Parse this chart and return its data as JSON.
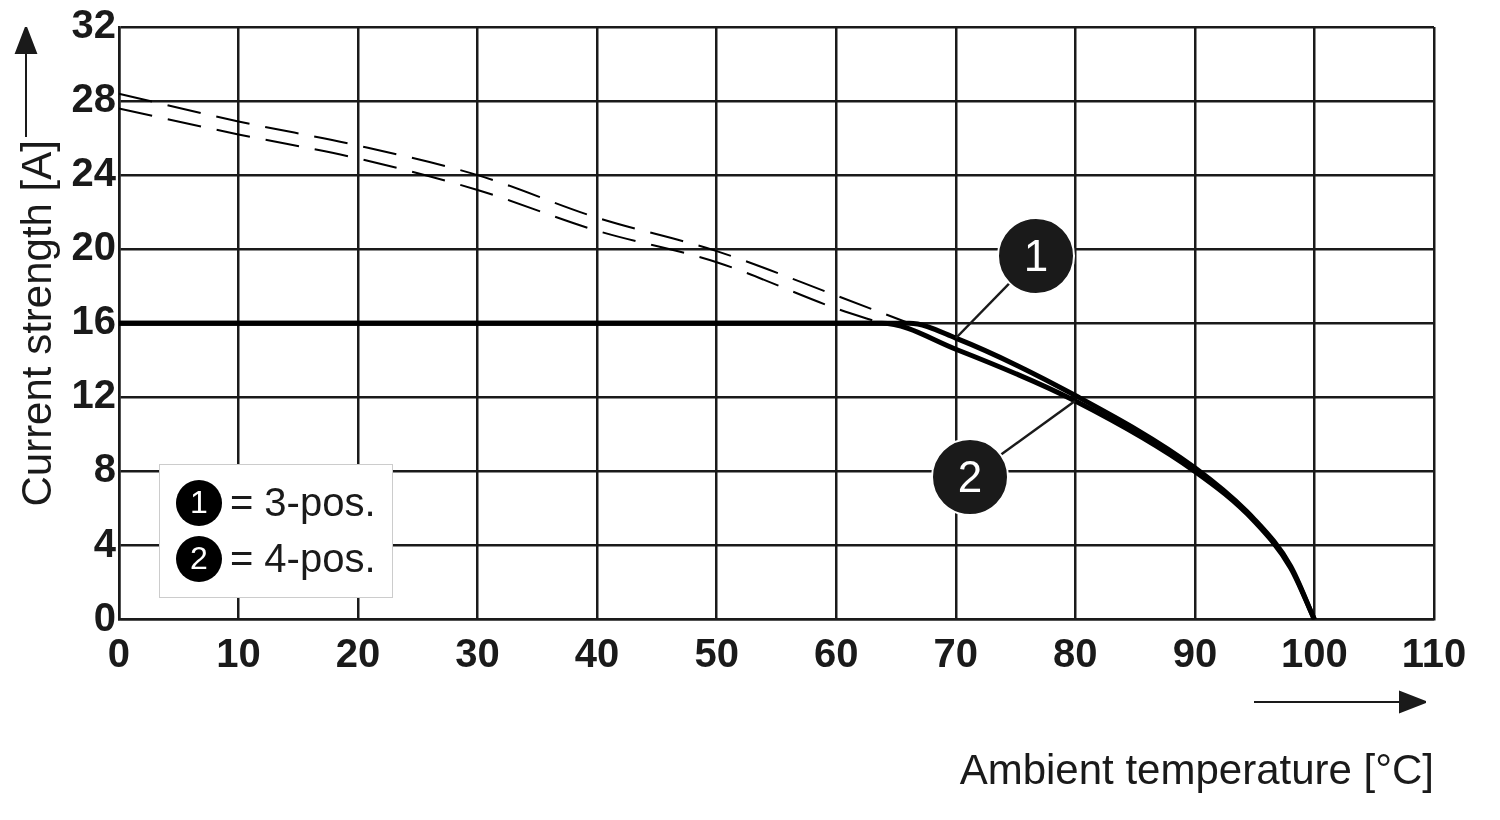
{
  "chart_data": {
    "type": "line",
    "xlabel": "Ambient temperature [°C]",
    "ylabel": "Current strength [A]",
    "xlim": [
      0,
      110
    ],
    "xticks": [
      0,
      10,
      20,
      30,
      40,
      50,
      60,
      70,
      80,
      90,
      100,
      110
    ],
    "ylim": [
      0,
      32
    ],
    "yticks": [
      0,
      4,
      8,
      12,
      16,
      20,
      24,
      28,
      32
    ],
    "grid": true,
    "legend": "bottom left",
    "marker": "none",
    "annotations": [
      "= 3-pos.",
      "= 4-pos."
    ],
    "series": [
      {
        "name": "1",
        "color": "#000000",
        "line_style": "solid",
        "x": [
          0,
          66.1,
          70,
          80,
          90,
          95,
          98,
          100
        ],
        "values": [
          16,
          16,
          15.2,
          12.1,
          8.2,
          5.4,
          2.9,
          0
        ]
      },
      {
        "name": "2",
        "color": "#000000",
        "line_style": "solid",
        "x": [
          0,
          63.8,
          70,
          80,
          90,
          95,
          98,
          100
        ],
        "values": [
          16,
          16,
          14.6,
          11.8,
          8.0,
          5.3,
          2.8,
          0
        ]
      },
      {
        "color": "#000000",
        "line_style": "dashed",
        "x": [
          0,
          10,
          20,
          30,
          40,
          50,
          60,
          66.1
        ],
        "values": [
          28.4,
          26.9,
          25.6,
          24.0,
          21.7,
          19.9,
          17.5,
          16
        ]
      },
      {
        "color": "#000000",
        "line_style": "dashed",
        "x": [
          0,
          10,
          20,
          30,
          40,
          50,
          60,
          63.8
        ],
        "values": [
          27.6,
          26.2,
          24.9,
          23.2,
          21.0,
          19.3,
          16.8,
          16
        ]
      }
    ]
  }
}
